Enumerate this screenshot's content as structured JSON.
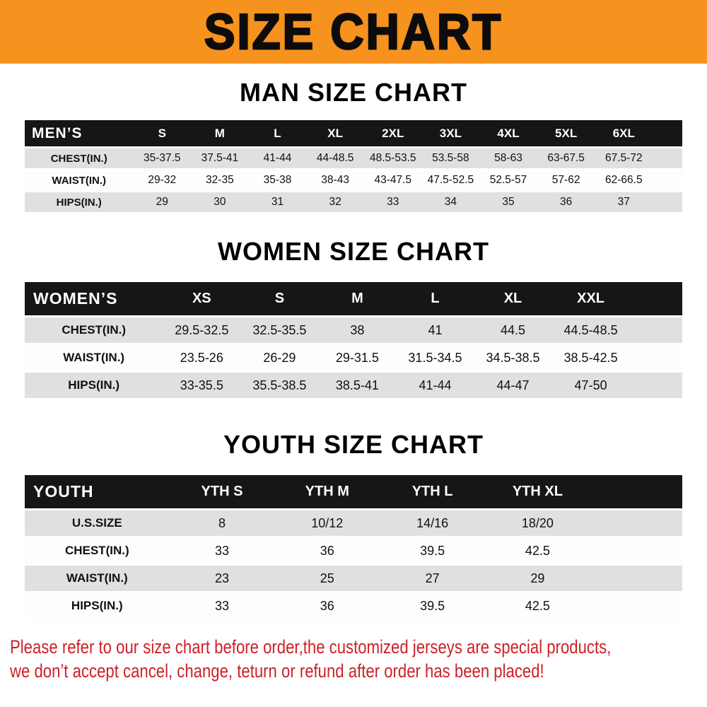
{
  "banner": {
    "title": "SIZE CHART"
  },
  "colors": {
    "banner_bg": "#f6921e",
    "table_header_bg": "#161616",
    "row_stripe": "#e0e0e0",
    "notice_red": "#cc2127"
  },
  "chart_data": [
    {
      "type": "table",
      "title": "MAN SIZE CHART",
      "header_label": "MEN’S",
      "columns": [
        "S",
        "M",
        "L",
        "XL",
        "2XL",
        "3XL",
        "4XL",
        "5XL",
        "6XL"
      ],
      "rows": [
        {
          "label": "CHEST(IN.)",
          "values": [
            "35-37.5",
            "37.5-41",
            "41-44",
            "44-48.5",
            "48.5-53.5",
            "53.5-58",
            "58-63",
            "63-67.5",
            "67.5-72"
          ]
        },
        {
          "label": "WAIST(IN.)",
          "values": [
            "29-32",
            "32-35",
            "35-38",
            "38-43",
            "43-47.5",
            "47.5-52.5",
            "52.5-57",
            "57-62",
            "62-66.5"
          ]
        },
        {
          "label": "HIPS(IN.)",
          "values": [
            "29",
            "30",
            "31",
            "32",
            "33",
            "34",
            "35",
            "36",
            "37"
          ]
        }
      ]
    },
    {
      "type": "table",
      "title": "WOMEN SIZE CHART",
      "header_label": "WOMEN’S",
      "columns": [
        "XS",
        "S",
        "M",
        "L",
        "XL",
        "XXL"
      ],
      "rows": [
        {
          "label": "CHEST(IN.)",
          "values": [
            "29.5-32.5",
            "32.5-35.5",
            "38",
            "41",
            "44.5",
            "44.5-48.5"
          ]
        },
        {
          "label": "WAIST(IN.)",
          "values": [
            "23.5-26",
            "26-29",
            "29-31.5",
            "31.5-34.5",
            "34.5-38.5",
            "38.5-42.5"
          ]
        },
        {
          "label": "HIPS(IN.)",
          "values": [
            "33-35.5",
            "35.5-38.5",
            "38.5-41",
            "41-44",
            "44-47",
            "47-50"
          ]
        }
      ]
    },
    {
      "type": "table",
      "title": "YOUTH SIZE CHART",
      "header_label": "YOUTH",
      "columns": [
        "YTH S",
        "YTH M",
        "YTH L",
        "YTH XL"
      ],
      "rows": [
        {
          "label": "U.S.SIZE",
          "values": [
            "8",
            "10/12",
            "14/16",
            "18/20"
          ]
        },
        {
          "label": "CHEST(IN.)",
          "values": [
            "33",
            "36",
            "39.5",
            "42.5"
          ]
        },
        {
          "label": "WAIST(IN.)",
          "values": [
            "23",
            "25",
            "27",
            "29"
          ]
        },
        {
          "label": "HIPS(IN.)",
          "values": [
            "33",
            "36",
            "39.5",
            "42.5"
          ]
        }
      ]
    }
  ],
  "footer": {
    "line1": "Please refer to our size chart before order,the customized jerseys are special products,",
    "line2": "we don’t accept cancel, change, teturn or refund after order has been placed!"
  }
}
